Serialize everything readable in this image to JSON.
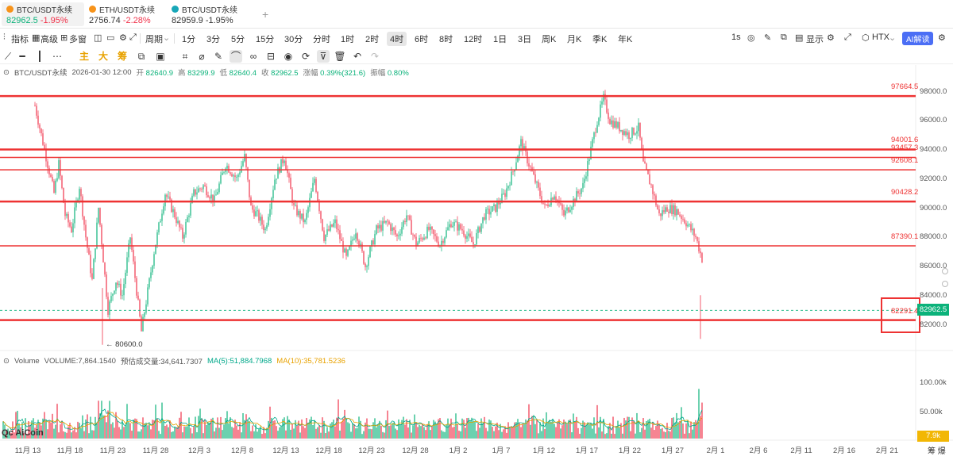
{
  "tabs": [
    {
      "name": "BTC/USDT永续",
      "price": "82962.5",
      "change": "-1.95%",
      "coin_color": "#f7931a",
      "dir": "down"
    },
    {
      "name": "ETH/USDT永续",
      "price": "2756.74",
      "change": "-2.28%",
      "coin_color": "#f7931a",
      "dir": "down"
    },
    {
      "name": "BTC/USDT永续",
      "price": "82959.9",
      "change": "-1.95%",
      "coin_color": "#19a7b8",
      "dir": "down"
    }
  ],
  "tab_add": "+",
  "toolbar": {
    "indicators": "指标",
    "advanced": "高级",
    "multi": "多窗",
    "period_label": "周期",
    "periods": [
      "1分",
      "3分",
      "5分",
      "15分",
      "30分",
      "分时",
      "1时",
      "2时",
      "4时",
      "6时",
      "8时",
      "12时",
      "1日",
      "3日",
      "周K",
      "月K",
      "季K",
      "年K"
    ],
    "active_period": "4时",
    "right": {
      "interval": "1s",
      "display": "显示",
      "exchange": "HTX",
      "ai": "AI解读"
    }
  },
  "tools": [
    "diagonal-line-icon",
    "horizontal-segment-icon",
    "vertical-line-icon",
    "dotted-line-icon",
    "主",
    "大",
    "筹",
    "copy-icon",
    "screenshot-icon",
    "crop-icon",
    "ruler-icon",
    "pen-icon",
    "magnet-icon",
    "glasses-icon",
    "lock-icon",
    "eye-icon",
    "gift-icon",
    "filter-icon",
    "trash-icon",
    "undo-icon",
    "redo-icon"
  ],
  "info": {
    "symbol": "BTC/USDT永续",
    "datetime": "2026-01-30 12:00",
    "open_label": "开",
    "open": "82640.9",
    "high_label": "高",
    "high": "83299.9",
    "low_label": "低",
    "low": "82640.4",
    "close_label": "收",
    "close": "82962.5",
    "change_label": "涨幅",
    "change": "0.39%(321.6)",
    "amp_label": "振幅",
    "amp": "0.80%"
  },
  "volume_info": {
    "label": "Volume",
    "volume": "VOLUME:7,864.1540",
    "turnover": "预估成交量:34,641.7307",
    "ma5": "MA(5):51,884.7968",
    "ma10": "MA(10):35,781.5236"
  },
  "y_axis": [
    "98000.0",
    "96000.0",
    "94000.0",
    "92000.0",
    "90000.0",
    "88000.0",
    "86000.0",
    "84000.0",
    "82000.0"
  ],
  "vol_axis": [
    "100.00k",
    "50.00k"
  ],
  "x_axis": [
    "11月 13",
    "11月 18",
    "11月 23",
    "11月 28",
    "12月 3",
    "12月 8",
    "12月 13",
    "12月 18",
    "12月 23",
    "12月 28",
    "1月 2",
    "1月 7",
    "1月 12",
    "1月 17",
    "1月 22",
    "1月 27",
    "2月 1",
    "2月 6",
    "2月 11",
    "2月 16",
    "2月 21"
  ],
  "levels": [
    "97664.5",
    "94001.6",
    "93457.3",
    "92608.1",
    "90428.2",
    "87390.1",
    "82291.4"
  ],
  "current_price": "82962.5",
  "current_volume": "7.9k",
  "low_marker": "← 80600.0",
  "logo": "Qc AiCoin",
  "corner_label": "筹 爆",
  "colors": {
    "up": "#0bb27a",
    "down": "#f0324a",
    "level": "#e33",
    "ma5": "#00a88a",
    "ma10": "#e8a200"
  }
}
